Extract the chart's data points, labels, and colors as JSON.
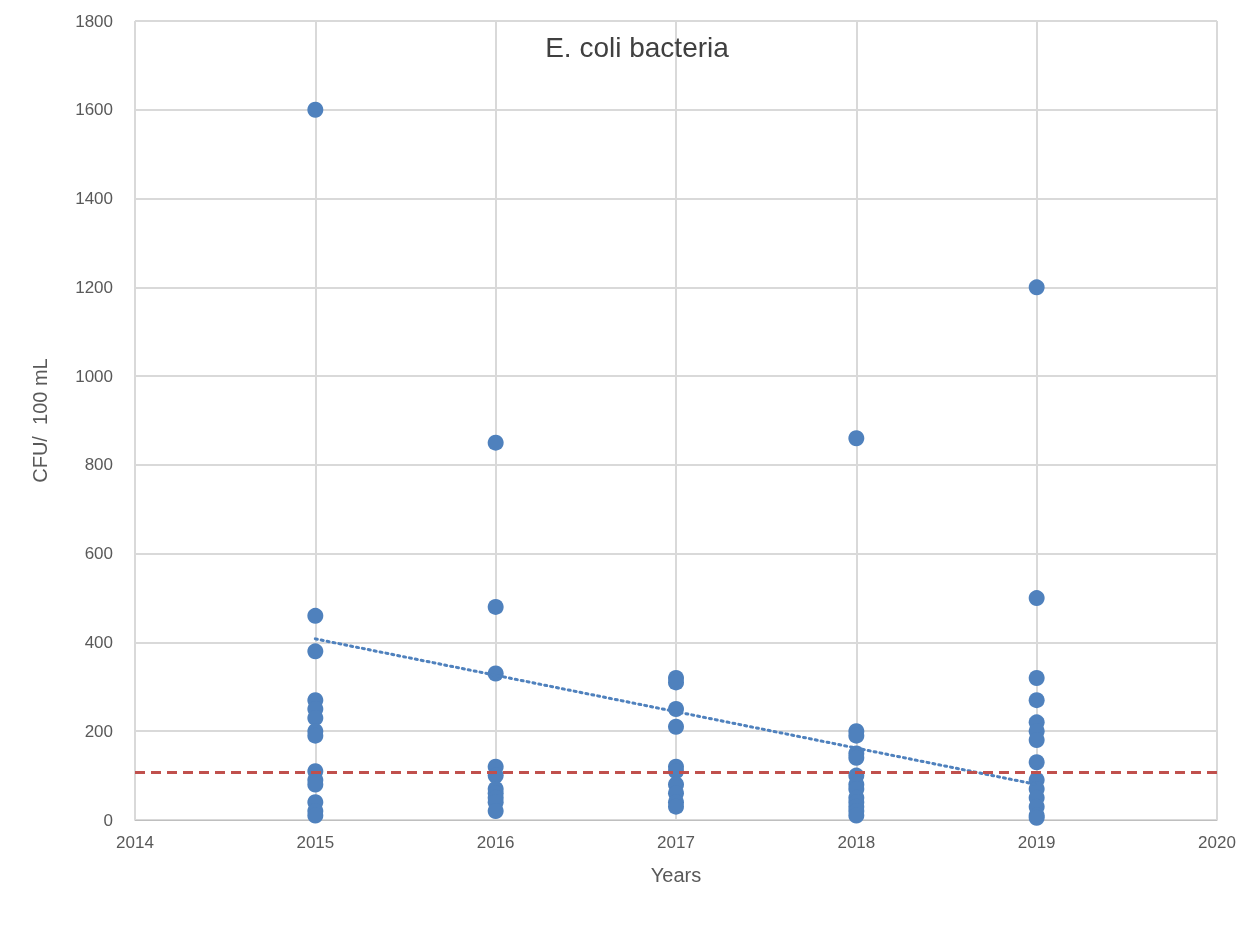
{
  "chart_data": {
    "type": "scatter",
    "title": "E. coli bacteria",
    "xlabel": "Years",
    "ylabel": "CFU/  100 mL",
    "xlim": [
      2014,
      2020
    ],
    "xticks": [
      2014,
      2015,
      2016,
      2017,
      2018,
      2019,
      2020
    ],
    "ylim": [
      0,
      1800
    ],
    "yticks": [
      0,
      200,
      400,
      600,
      800,
      1000,
      1200,
      1400,
      1600,
      1800
    ],
    "grid": true,
    "marker": "circle",
    "series": [
      {
        "color": "#4f81bd",
        "x": [
          2015,
          2015,
          2015,
          2015,
          2015,
          2015,
          2015,
          2015,
          2015,
          2015,
          2015,
          2015,
          2015,
          2015,
          2016,
          2016,
          2016,
          2016,
          2016,
          2016,
          2016,
          2016,
          2016,
          2016,
          2017,
          2017,
          2017,
          2017,
          2017,
          2017,
          2017,
          2017,
          2017,
          2017,
          2018,
          2018,
          2018,
          2018,
          2018,
          2018,
          2018,
          2018,
          2018,
          2018,
          2018,
          2018,
          2018,
          2019,
          2019,
          2019,
          2019,
          2019,
          2019,
          2019,
          2019,
          2019,
          2019,
          2019,
          2019,
          2019,
          2019
        ],
        "values": [
          1600,
          460,
          380,
          270,
          250,
          230,
          200,
          190,
          110,
          90,
          80,
          40,
          20,
          10,
          850,
          480,
          330,
          120,
          100,
          70,
          60,
          50,
          40,
          20,
          320,
          310,
          250,
          210,
          120,
          110,
          80,
          60,
          40,
          30,
          860,
          200,
          190,
          150,
          140,
          100,
          80,
          70,
          50,
          40,
          30,
          20,
          10,
          1200,
          500,
          320,
          270,
          220,
          200,
          180,
          130,
          90,
          70,
          50,
          30,
          10,
          5
        ]
      },
      {
        "type": "line",
        "color": "#4f81bd",
        "line_style": "dotted",
        "marker": "none",
        "x": [
          2015,
          2019
        ],
        "values": [
          408,
          80
        ]
      }
    ],
    "ref_lines": [
      {
        "axis": "y",
        "value": 108,
        "color": "#c0504d",
        "line_style": "dashed"
      }
    ]
  }
}
